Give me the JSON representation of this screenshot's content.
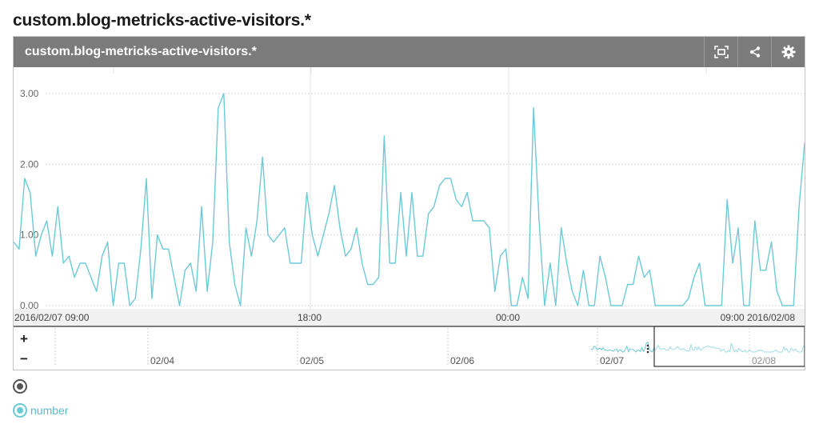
{
  "page": {
    "title": "custom.blog-metricks-active-visitors.*"
  },
  "panel": {
    "title": "custom.blog-metricks-active-visitors.*",
    "buttons": {
      "expand_icon": "expand-icon",
      "share_icon": "share-icon",
      "settings_icon": "gear-icon"
    }
  },
  "navigator": {
    "zoom_in": "+",
    "zoom_out": "−",
    "date_labels": [
      "02/04",
      "02/05",
      "02/06",
      "02/07",
      "02/08"
    ]
  },
  "legend": {
    "series_name": "number"
  },
  "colors": {
    "series": "#6ccad6",
    "header": "#7b7b7b",
    "grid": "#d9d9d9"
  },
  "chart_data": {
    "type": "line",
    "ylim": [
      0,
      3
    ],
    "y_ticks": [
      "0.00",
      "1.00",
      "2.00",
      "3.00"
    ],
    "x_tick_labels": [
      "2016/02/07 09:00",
      "18:00",
      "00:00",
      "09:00 2016/02/08"
    ],
    "grid": true,
    "series": [
      {
        "name": "number",
        "values": [
          0.9,
          0.8,
          1.8,
          1.6,
          0.7,
          1.0,
          1.2,
          0.7,
          1.4,
          0.6,
          0.7,
          0.4,
          0.6,
          0.6,
          0.4,
          0.2,
          0.7,
          0.9,
          0.0,
          0.6,
          0.6,
          0.0,
          0.1,
          0.8,
          1.8,
          0.1,
          1.0,
          0.8,
          0.8,
          0.4,
          0.0,
          0.5,
          0.6,
          0.2,
          1.4,
          0.2,
          0.9,
          2.8,
          3.0,
          0.9,
          0.3,
          0.0,
          1.1,
          0.7,
          1.2,
          2.1,
          1.0,
          0.9,
          1.0,
          1.1,
          0.6,
          0.6,
          0.6,
          1.6,
          1.0,
          0.7,
          1.0,
          1.3,
          1.7,
          1.1,
          0.7,
          0.8,
          1.1,
          0.6,
          0.3,
          0.3,
          0.4,
          2.4,
          0.6,
          0.6,
          1.6,
          0.7,
          1.6,
          0.7,
          0.7,
          1.3,
          1.4,
          1.7,
          1.8,
          1.8,
          1.5,
          1.4,
          1.6,
          1.2,
          1.2,
          1.2,
          1.1,
          0.2,
          0.7,
          0.8,
          0.0,
          0.0,
          0.4,
          0.1,
          2.8,
          1.2,
          0.0,
          0.6,
          0.0,
          1.1,
          0.6,
          0.2,
          0.0,
          0.5,
          0.0,
          0.0,
          0.7,
          0.4,
          0.0,
          0.0,
          0.0,
          0.3,
          0.3,
          0.7,
          0.4,
          0.5,
          0.0,
          0.0,
          0.0,
          0.0,
          0.0,
          0.0,
          0.1,
          0.4,
          0.6,
          0.0,
          0.0,
          0.0,
          0.0,
          1.5,
          0.6,
          1.1,
          0.0,
          0.0,
          1.2,
          0.5,
          0.5,
          0.9,
          0.2,
          0.0,
          0.0,
          0.0,
          1.4,
          2.3
        ]
      }
    ]
  }
}
